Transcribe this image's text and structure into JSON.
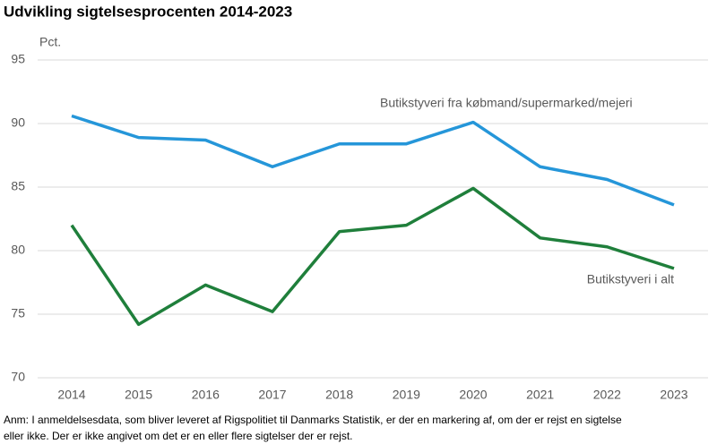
{
  "chart_data": {
    "type": "line",
    "title": "Udvikling sigtelsesprocenten 2014-2023",
    "y_label": "Pct.",
    "categories": [
      "2014",
      "2015",
      "2016",
      "2017",
      "2018",
      "2019",
      "2020",
      "2021",
      "2022",
      "2023"
    ],
    "series": [
      {
        "name": "Butikstyveri fra købmand/supermarked/mejeri",
        "color": "#2596d9",
        "values": [
          90.6,
          88.9,
          88.7,
          86.6,
          88.4,
          88.4,
          90.1,
          86.6,
          85.6,
          83.6
        ]
      },
      {
        "name": "Butikstyveri i alt",
        "color": "#1f7f3b",
        "values": [
          82.0,
          74.2,
          77.3,
          75.2,
          81.5,
          82.0,
          84.9,
          81.0,
          80.3,
          78.6
        ]
      }
    ],
    "ylim": [
      70,
      95
    ],
    "yticks": [
      70,
      75,
      80,
      85,
      90,
      95
    ],
    "grid": true,
    "note": [
      "Anm: I anmeldelsesdata, som bliver leveret af Rigspolitiet til Danmarks Statistik, er der en markering af, om der er rejst en sigtelse",
      "eller ikke. Der er ikke angivet om det er en eller flere sigtelser der er rejst."
    ]
  }
}
